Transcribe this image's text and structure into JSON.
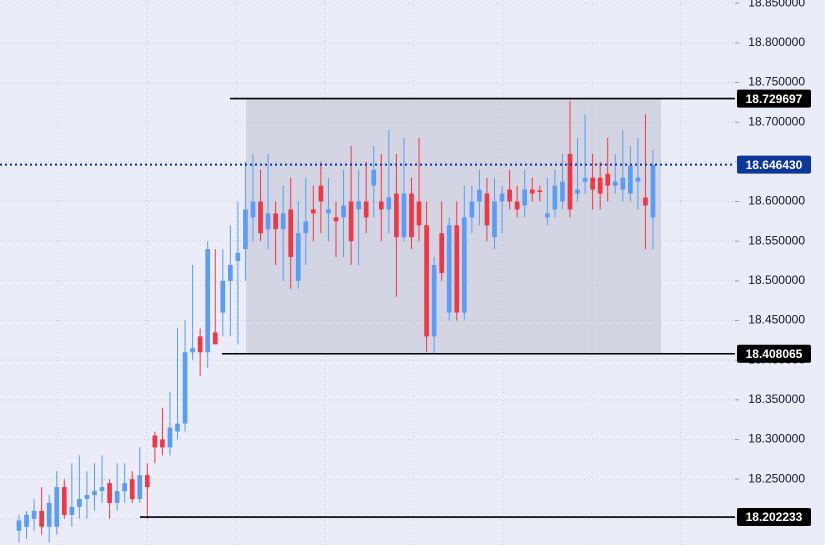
{
  "chart_data": {
    "type": "candlestick",
    "ylim": [
      18.167,
      18.854
    ],
    "yticks": [
      {
        "value": 18.85,
        "label": "18.850000"
      },
      {
        "value": 18.8,
        "label": "18.800000"
      },
      {
        "value": 18.75,
        "label": "18.750000"
      },
      {
        "value": 18.7,
        "label": "18.700000"
      },
      {
        "value": 18.65,
        "label": "18.650000"
      },
      {
        "value": 18.6,
        "label": "18.600000"
      },
      {
        "value": 18.55,
        "label": "18.550000"
      },
      {
        "value": 18.5,
        "label": "18.500000"
      },
      {
        "value": 18.45,
        "label": "18.450000"
      },
      {
        "value": 18.4,
        "label": "18.400000"
      },
      {
        "value": 18.35,
        "label": "18.350000"
      },
      {
        "value": 18.3,
        "label": "18.300000"
      },
      {
        "value": 18.25,
        "label": "18.250000"
      },
      {
        "value": 18.2,
        "label": "18.200000"
      }
    ],
    "grid": true,
    "up_color": "#5b9cf6",
    "down_color": "#f23645",
    "open": [
      18.185,
      18.19,
      18.2,
      18.21,
      18.19,
      18.19,
      18.24,
      18.205,
      18.215,
      18.225,
      18.23,
      18.235,
      18.245,
      18.22,
      18.235,
      18.25,
      18.225,
      18.255,
      18.305,
      18.3,
      18.29,
      18.31,
      18.32,
      18.41,
      18.43,
      18.41,
      18.435,
      18.46,
      18.5,
      18.525,
      18.54,
      18.58,
      18.6,
      18.565,
      18.585,
      18.565,
      18.59,
      18.5,
      18.56,
      18.59,
      18.62,
      18.585,
      18.58,
      18.58,
      18.6,
      18.59,
      18.6,
      18.62,
      18.6,
      18.59,
      18.61,
      18.555,
      18.61,
      18.6,
      18.57,
      18.43,
      18.56,
      18.46,
      18.57,
      18.46,
      18.58,
      18.6,
      18.61,
      18.555,
      18.6,
      18.615,
      18.6,
      18.595,
      18.615,
      18.614,
      18.58,
      18.59,
      18.6,
      18.66,
      18.61,
      18.625,
      18.63,
      18.63,
      18.635,
      18.62,
      18.615,
      18.61,
      18.625,
      18.605,
      18.58
    ],
    "high": [
      18.205,
      18.21,
      18.225,
      18.24,
      18.23,
      18.26,
      18.25,
      18.27,
      18.28,
      18.26,
      18.27,
      18.28,
      18.25,
      18.27,
      18.27,
      18.26,
      18.29,
      18.27,
      18.31,
      18.34,
      18.36,
      18.44,
      18.45,
      18.52,
      18.44,
      18.55,
      18.54,
      18.54,
      18.57,
      18.6,
      18.65,
      18.66,
      18.64,
      18.66,
      18.6,
      18.62,
      18.63,
      18.6,
      18.63,
      18.62,
      18.65,
      18.63,
      18.6,
      18.64,
      18.67,
      18.64,
      18.65,
      18.67,
      18.66,
      18.69,
      18.66,
      18.68,
      18.63,
      18.68,
      18.6,
      18.53,
      18.6,
      18.58,
      18.6,
      18.62,
      18.62,
      18.64,
      18.63,
      18.63,
      18.62,
      18.64,
      18.62,
      18.64,
      18.63,
      18.62,
      18.63,
      18.64,
      18.66,
      18.727,
      18.68,
      18.71,
      18.66,
      18.65,
      18.68,
      18.66,
      18.69,
      18.67,
      18.68,
      18.71,
      18.665
    ],
    "low": [
      18.17,
      18.175,
      18.185,
      18.18,
      18.17,
      18.18,
      18.2,
      18.19,
      18.2,
      18.2,
      18.21,
      18.22,
      18.2,
      18.21,
      18.22,
      18.22,
      18.22,
      18.2,
      18.27,
      18.28,
      18.28,
      18.3,
      18.31,
      18.4,
      18.38,
      18.39,
      18.42,
      18.43,
      18.43,
      18.42,
      18.5,
      18.55,
      18.55,
      18.54,
      18.52,
      18.5,
      18.49,
      18.49,
      18.52,
      18.55,
      18.56,
      18.55,
      18.53,
      18.53,
      18.52,
      18.52,
      18.56,
      18.58,
      18.55,
      18.56,
      18.48,
      18.55,
      18.54,
      18.55,
      18.41,
      18.408,
      18.5,
      18.45,
      18.45,
      18.45,
      18.56,
      18.57,
      18.55,
      18.54,
      18.56,
      18.59,
      18.58,
      18.58,
      18.6,
      18.6,
      18.57,
      18.58,
      18.59,
      18.58,
      18.6,
      18.61,
      18.59,
      18.59,
      18.6,
      18.61,
      18.6,
      18.6,
      18.59,
      18.54,
      18.54
    ],
    "close": [
      18.198,
      18.205,
      18.21,
      18.19,
      18.22,
      18.24,
      18.205,
      18.215,
      18.225,
      18.23,
      18.235,
      18.24,
      18.22,
      18.235,
      18.245,
      18.225,
      18.255,
      18.24,
      18.29,
      18.29,
      18.315,
      18.32,
      18.41,
      18.415,
      18.41,
      18.54,
      18.42,
      18.5,
      18.52,
      18.535,
      18.59,
      18.6,
      18.56,
      18.585,
      18.565,
      18.585,
      18.53,
      18.56,
      18.575,
      18.585,
      18.6,
      18.59,
      18.575,
      18.595,
      18.55,
      18.6,
      18.58,
      18.64,
      18.59,
      18.605,
      18.555,
      18.61,
      18.555,
      18.57,
      18.43,
      18.52,
      18.51,
      18.57,
      18.46,
      18.58,
      18.6,
      18.615,
      18.57,
      18.6,
      18.61,
      18.6,
      18.59,
      18.615,
      18.61,
      18.612,
      18.585,
      18.62,
      18.625,
      18.59,
      18.615,
      18.63,
      18.615,
      18.61,
      18.62,
      18.625,
      18.63,
      18.645,
      18.63,
      18.595,
      18.646
    ],
    "levels": [
      18.729697,
      {
        "value": 18.64643,
        "label": "18.646430"
      },
      18.408065,
      18.202233
    ]
  }
}
